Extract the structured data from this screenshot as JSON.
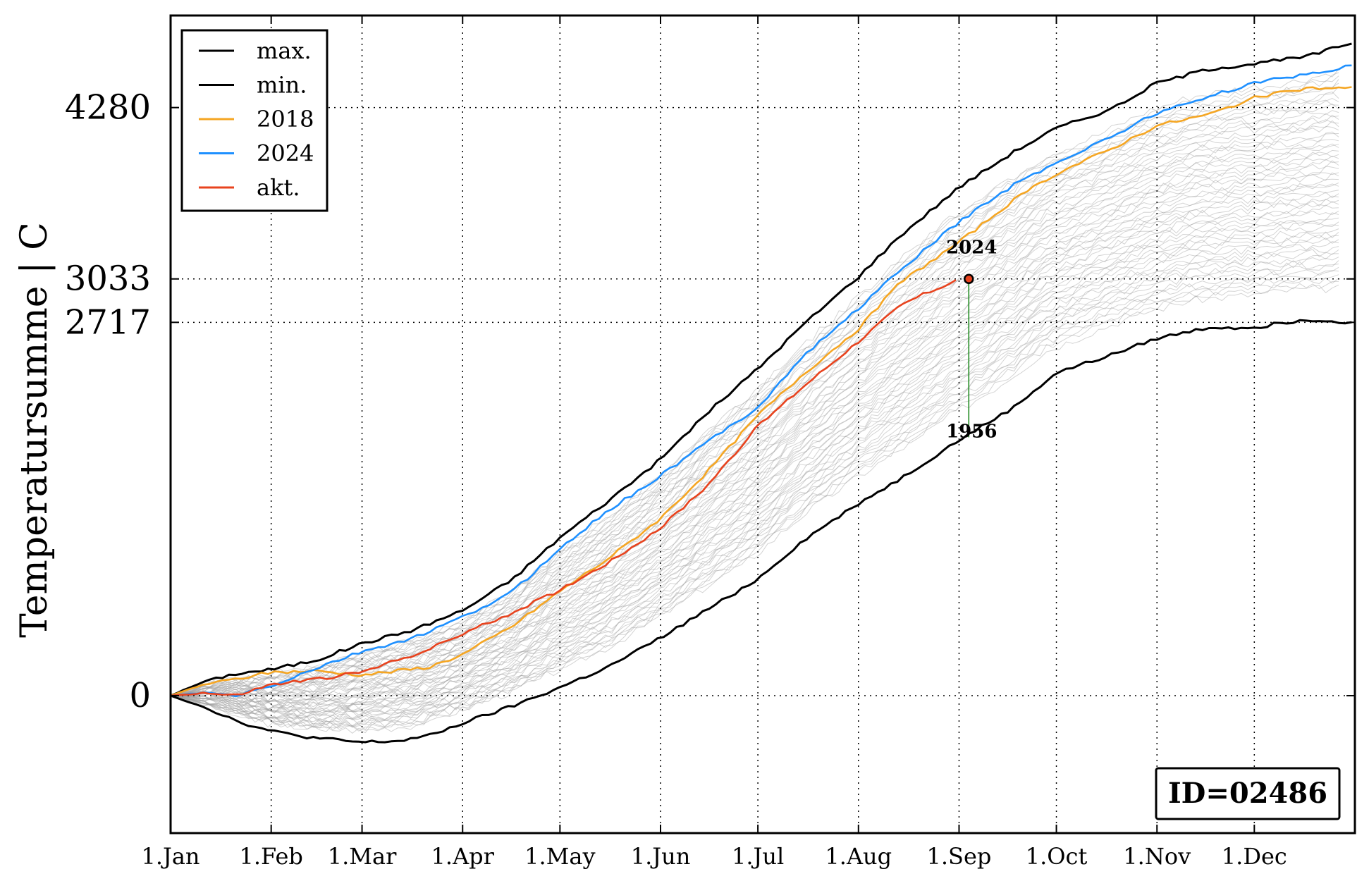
{
  "chart_data": {
    "type": "line",
    "ylabel": "Temperatursumme | C",
    "xlim": [
      0,
      365
    ],
    "ylim": [
      -1000,
      4950
    ],
    "x_ticks": [
      {
        "label": "1.Jan",
        "day": 0
      },
      {
        "label": "1.Feb",
        "day": 31
      },
      {
        "label": "1.Mar",
        "day": 59
      },
      {
        "label": "1.Apr",
        "day": 90
      },
      {
        "label": "1.May",
        "day": 120
      },
      {
        "label": "1.Jun",
        "day": 151
      },
      {
        "label": "1.Jul",
        "day": 181
      },
      {
        "label": "1.Aug",
        "day": 212
      },
      {
        "label": "1.Sep",
        "day": 243
      },
      {
        "label": "1.Oct",
        "day": 273
      },
      {
        "label": "1.Nov",
        "day": 304
      },
      {
        "label": "1.Dec",
        "day": 334
      }
    ],
    "y_ticks": [
      {
        "label": "0",
        "value": 0
      },
      {
        "label": "2717",
        "value": 2717
      },
      {
        "label": "3033",
        "value": 3033
      },
      {
        "label": "4280",
        "value": 4280
      }
    ],
    "grid": true,
    "legend_position": "top-left",
    "background_series_color": "#a0a0a0",
    "background_years_shown": true,
    "series": [
      {
        "name": "max.",
        "color": "#000000",
        "points": [
          [
            0,
            0
          ],
          [
            10,
            100
          ],
          [
            20,
            160
          ],
          [
            31,
            190
          ],
          [
            45,
            260
          ],
          [
            59,
            380
          ],
          [
            75,
            480
          ],
          [
            90,
            620
          ],
          [
            105,
            840
          ],
          [
            120,
            1150
          ],
          [
            135,
            1420
          ],
          [
            151,
            1720
          ],
          [
            165,
            2050
          ],
          [
            181,
            2380
          ],
          [
            195,
            2700
          ],
          [
            212,
            3050
          ],
          [
            225,
            3350
          ],
          [
            243,
            3700
          ],
          [
            260,
            3960
          ],
          [
            273,
            4130
          ],
          [
            290,
            4270
          ],
          [
            304,
            4460
          ],
          [
            320,
            4560
          ],
          [
            334,
            4600
          ],
          [
            350,
            4650
          ],
          [
            365,
            4760
          ]
        ]
      },
      {
        "name": "min.",
        "color": "#000000",
        "points": [
          [
            0,
            0
          ],
          [
            10,
            -80
          ],
          [
            20,
            -180
          ],
          [
            31,
            -260
          ],
          [
            45,
            -310
          ],
          [
            59,
            -340
          ],
          [
            70,
            -330
          ],
          [
            80,
            -290
          ],
          [
            90,
            -200
          ],
          [
            105,
            -80
          ],
          [
            120,
            60
          ],
          [
            135,
            210
          ],
          [
            151,
            420
          ],
          [
            165,
            620
          ],
          [
            181,
            850
          ],
          [
            195,
            1130
          ],
          [
            212,
            1400
          ],
          [
            225,
            1580
          ],
          [
            243,
            1860
          ],
          [
            260,
            2100
          ],
          [
            273,
            2350
          ],
          [
            290,
            2480
          ],
          [
            304,
            2600
          ],
          [
            320,
            2680
          ],
          [
            334,
            2680
          ],
          [
            350,
            2740
          ],
          [
            365,
            2717
          ]
        ]
      },
      {
        "name": "2018",
        "color": "#f5a623",
        "points": [
          [
            0,
            0
          ],
          [
            10,
            80
          ],
          [
            20,
            120
          ],
          [
            31,
            170
          ],
          [
            45,
            180
          ],
          [
            59,
            150
          ],
          [
            70,
            180
          ],
          [
            80,
            210
          ],
          [
            90,
            300
          ],
          [
            105,
            500
          ],
          [
            120,
            760
          ],
          [
            135,
            1000
          ],
          [
            151,
            1290
          ],
          [
            165,
            1620
          ],
          [
            181,
            2040
          ],
          [
            195,
            2340
          ],
          [
            212,
            2670
          ],
          [
            225,
            3010
          ],
          [
            243,
            3300
          ],
          [
            260,
            3610
          ],
          [
            273,
            3800
          ],
          [
            290,
            3980
          ],
          [
            304,
            4150
          ],
          [
            320,
            4230
          ],
          [
            334,
            4350
          ],
          [
            350,
            4420
          ],
          [
            365,
            4420
          ]
        ]
      },
      {
        "name": "2024",
        "color": "#1e90ff",
        "points": [
          [
            0,
            0
          ],
          [
            10,
            20
          ],
          [
            20,
            0
          ],
          [
            31,
            70
          ],
          [
            45,
            200
          ],
          [
            59,
            320
          ],
          [
            75,
            420
          ],
          [
            90,
            570
          ],
          [
            105,
            750
          ],
          [
            120,
            1070
          ],
          [
            135,
            1350
          ],
          [
            151,
            1600
          ],
          [
            165,
            1840
          ],
          [
            181,
            2100
          ],
          [
            195,
            2470
          ],
          [
            212,
            2820
          ],
          [
            225,
            3100
          ],
          [
            243,
            3450
          ],
          [
            260,
            3720
          ],
          [
            273,
            3880
          ],
          [
            290,
            4070
          ],
          [
            304,
            4240
          ],
          [
            320,
            4360
          ],
          [
            334,
            4460
          ],
          [
            350,
            4520
          ],
          [
            365,
            4590
          ]
        ]
      },
      {
        "name": "akt.",
        "color": "#e8431e",
        "points": [
          [
            0,
            0
          ],
          [
            10,
            20
          ],
          [
            20,
            0
          ],
          [
            31,
            80
          ],
          [
            45,
            120
          ],
          [
            59,
            170
          ],
          [
            70,
            260
          ],
          [
            80,
            340
          ],
          [
            90,
            450
          ],
          [
            105,
            600
          ],
          [
            120,
            770
          ],
          [
            135,
            970
          ],
          [
            151,
            1220
          ],
          [
            165,
            1520
          ],
          [
            181,
            1960
          ],
          [
            195,
            2250
          ],
          [
            212,
            2580
          ],
          [
            225,
            2840
          ],
          [
            230,
            2900
          ],
          [
            243,
            3033
          ]
        ]
      }
    ],
    "current_marker": {
      "day": 246,
      "value": 3033
    },
    "annotations": [
      {
        "label": "2024",
        "day": 246,
        "value": 3220,
        "role": "top"
      },
      {
        "label": "1956",
        "day": 246,
        "value": 1880,
        "role": "bottom"
      }
    ],
    "range_line": {
      "day": 246,
      "from": 3033,
      "to": 1880,
      "color": "#228b22"
    },
    "id_box": "ID=02486"
  }
}
